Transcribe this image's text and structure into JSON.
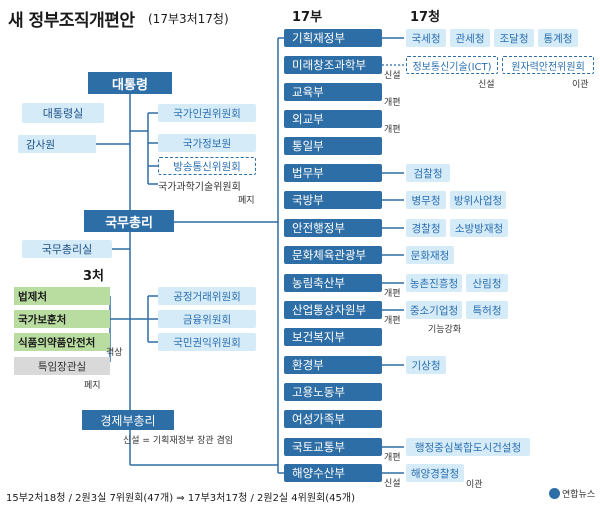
{
  "header": {
    "title": "새 정부조직개편안",
    "subtitle": "(17부3처17청)",
    "col_bu": "17부",
    "col_cheong": "17청",
    "col_cheo": "3처"
  },
  "top": {
    "president": "대통령",
    "presidential_office": "대통령실",
    "audit": "감사원",
    "prime_minister": "국무총리",
    "pm_office": "국무총리실",
    "deputy_pm": "경제부총리"
  },
  "president_committees": [
    {
      "label": "국가인권위원회"
    },
    {
      "label": "국가정보원"
    },
    {
      "label": "방송통신위원회"
    },
    {
      "label": "국가과학기술위원회"
    }
  ],
  "president_notes": {
    "abolished": "폐지"
  },
  "pm_committees": [
    {
      "label": "공정거래위원회"
    },
    {
      "label": "금융위원회"
    },
    {
      "label": "국민권익위원회"
    }
  ],
  "cheo": [
    {
      "label": "법제처"
    },
    {
      "label": "국가보훈처"
    },
    {
      "label": "식품의약품안전처"
    },
    {
      "label": "특임장관실"
    }
  ],
  "cheo_notes": {
    "upgrade": "격상",
    "abolished": "폐지"
  },
  "deputy_note": "신설 = 기획재정부 장관 겸임",
  "ministries": [
    {
      "label": "기획재정부",
      "note": ""
    },
    {
      "label": "미래창조과학부",
      "note": "신설"
    },
    {
      "label": "교육부",
      "note": "개편"
    },
    {
      "label": "외교부",
      "note": "개편"
    },
    {
      "label": "통일부",
      "note": ""
    },
    {
      "label": "법무부",
      "note": ""
    },
    {
      "label": "국방부",
      "note": ""
    },
    {
      "label": "안전행정부",
      "note": ""
    },
    {
      "label": "문화체육관광부",
      "note": ""
    },
    {
      "label": "농림축산부",
      "note": "개편"
    },
    {
      "label": "산업통상자원부",
      "note": "개편"
    },
    {
      "label": "보건복지부",
      "note": ""
    },
    {
      "label": "환경부",
      "note": ""
    },
    {
      "label": "고용노동부",
      "note": ""
    },
    {
      "label": "여성가족부",
      "note": ""
    },
    {
      "label": "국토교통부",
      "note": "개편"
    },
    {
      "label": "해양수산부",
      "note": "신설"
    }
  ],
  "agencies": {
    "finance": [
      "국세청",
      "관세청",
      "조달청",
      "통계청"
    ],
    "science": [
      "정보통신기술(ICT)",
      "원자력안전위원회"
    ],
    "science_notes": [
      "신설",
      "이관"
    ],
    "justice": [
      "검찰청"
    ],
    "defense": [
      "병무청",
      "방위사업청"
    ],
    "interior": [
      "경찰청",
      "소방방재청"
    ],
    "culture": [
      "문화재청"
    ],
    "agriculture": [
      "농촌진흥청",
      "산림청"
    ],
    "industry": [
      "중소기업청",
      "특허청"
    ],
    "industry_note": "기능강화",
    "environment": [
      "기상청"
    ],
    "land": [
      "행정중심복합도시건설청"
    ],
    "ocean": [
      "해양경찰청"
    ],
    "ocean_note": "이관"
  },
  "footer": "15부2처18청 / 2원3실 7위원회(47개) ⇒ 17부3처17청 / 2원2실 4위원회(45개)",
  "logo_text": "연합뉴스",
  "colors": {
    "dark_blue": "#2e6ea6",
    "light_blue": "#d6ebf8",
    "green": "#b9dca0",
    "gray": "#d9d9d9"
  }
}
